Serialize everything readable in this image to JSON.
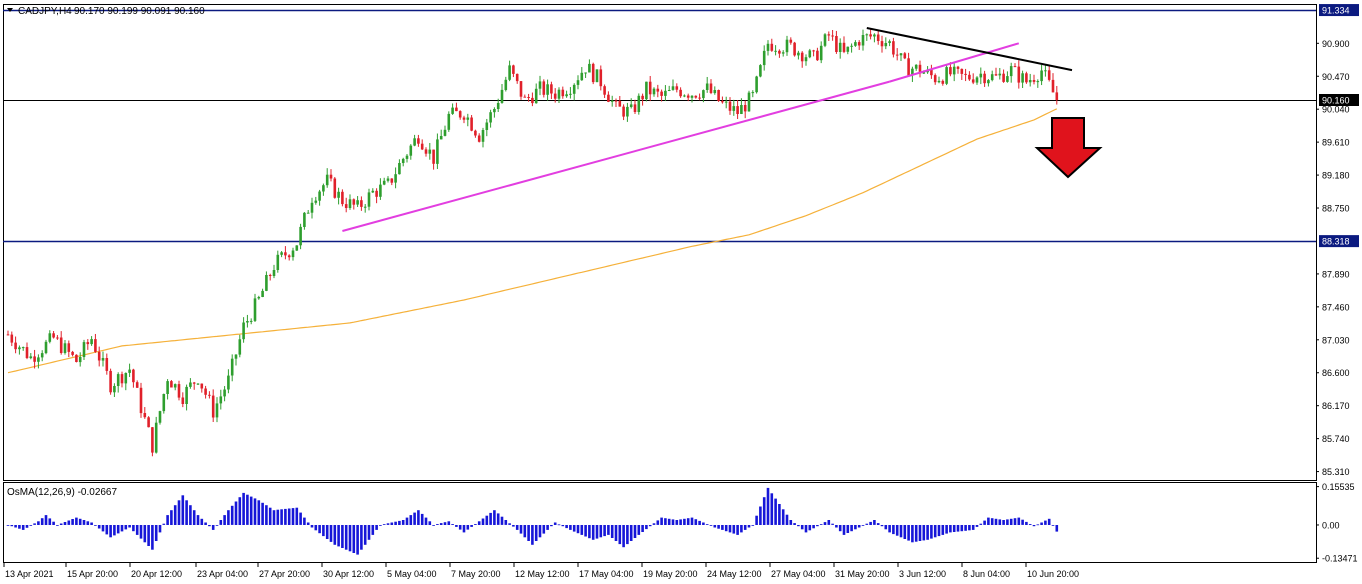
{
  "header": {
    "symbol_label": "CADJPY,H4",
    "ohlc_label": "90.170 90.199 90.091 90.160",
    "menu_icon": "triangle-down-icon"
  },
  "indicator": {
    "label": "OsMA(12,26,9) -0.02667",
    "scale": [
      "0.15535",
      "0.00",
      "-0.13471"
    ]
  },
  "colors": {
    "up": "#2e9e2e",
    "down": "#e0202a",
    "ma": "#f5b13a",
    "support_trend": "#e23ee0",
    "resistance_trend": "#000000",
    "level_line": "#0b1a80",
    "histogram": "#1616d8",
    "arrow": "#e0131c"
  },
  "chart_data": [
    {
      "type": "candlestick",
      "title": "CADJPY,H4",
      "price_axis_labels": [
        "90.900",
        "90.470",
        "90.040",
        "89.610",
        "89.180",
        "88.750",
        "87.890",
        "87.460",
        "87.030",
        "86.600",
        "86.170",
        "85.740",
        "85.310"
      ],
      "time_axis_labels": [
        "13 Apr 2021",
        "15 Apr 20:00",
        "20 Apr 12:00",
        "23 Apr 04:00",
        "27 Apr 20:00",
        "30 Apr 12:00",
        "5 May 04:00",
        "7 May 20:00",
        "12 May 12:00",
        "17 May 04:00",
        "19 May 20:00",
        "24 May 12:00",
        "27 May 04:00",
        "31 May 20:00",
        "3 Jun 12:00",
        "8 Jun 04:00",
        "10 Jun 20:00"
      ],
      "ylim": [
        85.2,
        91.4
      ],
      "levels": [
        {
          "value": 91.334,
          "label": "91.334"
        },
        {
          "value": 88.318,
          "label": "88.318"
        }
      ],
      "current_price": {
        "value": 90.16,
        "label": "90.160"
      },
      "anchors": [
        [
          0,
          87.1
        ],
        [
          6,
          86.8
        ],
        [
          12,
          87.05
        ],
        [
          18,
          86.75
        ],
        [
          22,
          87.05
        ],
        [
          27,
          86.45
        ],
        [
          32,
          86.65
        ],
        [
          38,
          85.65
        ],
        [
          42,
          86.55
        ],
        [
          46,
          86.3
        ],
        [
          50,
          86.55
        ],
        [
          54,
          86.1
        ],
        [
          58,
          86.5
        ],
        [
          62,
          87.2
        ],
        [
          66,
          87.55
        ],
        [
          70,
          88.0
        ],
        [
          76,
          88.3
        ],
        [
          80,
          88.9
        ],
        [
          84,
          89.1
        ],
        [
          88,
          88.85
        ],
        [
          92,
          88.75
        ],
        [
          96,
          88.95
        ],
        [
          100,
          89.05
        ],
        [
          104,
          89.4
        ],
        [
          108,
          89.7
        ],
        [
          112,
          89.4
        ],
        [
          116,
          89.95
        ],
        [
          120,
          90.0
        ],
        [
          124,
          89.7
        ],
        [
          128,
          90.05
        ],
        [
          132,
          90.55
        ],
        [
          136,
          90.15
        ],
        [
          140,
          90.3
        ],
        [
          144,
          90.25
        ],
        [
          148,
          90.35
        ],
        [
          152,
          90.6
        ],
        [
          156,
          90.4
        ],
        [
          160,
          90.05
        ],
        [
          164,
          90.0
        ],
        [
          168,
          90.3
        ],
        [
          172,
          90.2
        ],
        [
          176,
          90.3
        ],
        [
          180,
          90.25
        ],
        [
          184,
          90.3
        ],
        [
          188,
          90.1
        ],
        [
          192,
          90.0
        ],
        [
          196,
          90.2
        ],
        [
          200,
          90.9
        ],
        [
          206,
          90.85
        ],
        [
          212,
          90.7
        ],
        [
          216,
          91.0
        ],
        [
          220,
          90.75
        ],
        [
          224,
          90.95
        ],
        [
          228,
          91.0
        ],
        [
          232,
          90.9
        ],
        [
          236,
          90.6
        ],
        [
          240,
          90.55
        ],
        [
          244,
          90.45
        ],
        [
          248,
          90.5
        ],
        [
          252,
          90.45
        ],
        [
          256,
          90.5
        ],
        [
          260,
          90.45
        ],
        [
          264,
          90.55
        ],
        [
          268,
          90.4
        ],
        [
          272,
          90.55
        ],
        [
          276,
          90.16
        ]
      ],
      "moving_average": [
        [
          0,
          86.6
        ],
        [
          30,
          86.95
        ],
        [
          60,
          87.1
        ],
        [
          90,
          87.25
        ],
        [
          120,
          87.55
        ],
        [
          150,
          87.9
        ],
        [
          180,
          88.25
        ],
        [
          195,
          88.4
        ],
        [
          210,
          88.65
        ],
        [
          225,
          88.95
        ],
        [
          240,
          89.3
        ],
        [
          255,
          89.65
        ],
        [
          270,
          89.9
        ],
        [
          277,
          90.07
        ]
      ],
      "trendlines": [
        {
          "name": "support",
          "points": [
            [
              88,
              88.45
            ],
            [
              232,
              90.4
            ]
          ],
          "extension": [
            [
              232,
              90.4
            ],
            [
              266,
              90.9
            ]
          ]
        },
        {
          "name": "resistance",
          "points": [
            [
              226,
              91.1
            ],
            [
              280,
              90.55
            ]
          ]
        }
      ],
      "signal": "down-arrow"
    },
    {
      "type": "bar",
      "title": "OsMA(12,26,9)",
      "current_value": -0.02667,
      "ylim": [
        -0.15,
        0.17
      ],
      "anchors": [
        [
          0,
          0.0
        ],
        [
          4,
          -0.02
        ],
        [
          8,
          0.015
        ],
        [
          10,
          0.04
        ],
        [
          13,
          0.0
        ],
        [
          18,
          0.03
        ],
        [
          22,
          0.01
        ],
        [
          27,
          -0.05
        ],
        [
          32,
          -0.01
        ],
        [
          38,
          -0.1
        ],
        [
          42,
          0.04
        ],
        [
          46,
          0.12
        ],
        [
          50,
          0.04
        ],
        [
          54,
          -0.02
        ],
        [
          58,
          0.06
        ],
        [
          62,
          0.13
        ],
        [
          66,
          0.1
        ],
        [
          70,
          0.06
        ],
        [
          76,
          0.07
        ],
        [
          80,
          -0.01
        ],
        [
          86,
          -0.08
        ],
        [
          92,
          -0.12
        ],
        [
          98,
          0.0
        ],
        [
          104,
          0.02
        ],
        [
          108,
          0.06
        ],
        [
          112,
          0.0
        ],
        [
          116,
          0.015
        ],
        [
          120,
          -0.03
        ],
        [
          128,
          0.06
        ],
        [
          134,
          -0.02
        ],
        [
          138,
          -0.08
        ],
        [
          144,
          0.01
        ],
        [
          148,
          -0.02
        ],
        [
          154,
          -0.06
        ],
        [
          158,
          -0.04
        ],
        [
          162,
          -0.09
        ],
        [
          166,
          -0.04
        ],
        [
          172,
          0.03
        ],
        [
          176,
          0.02
        ],
        [
          180,
          0.03
        ],
        [
          186,
          -0.01
        ],
        [
          192,
          -0.04
        ],
        [
          196,
          0.0
        ],
        [
          200,
          0.15
        ],
        [
          206,
          0.02
        ],
        [
          210,
          -0.03
        ],
        [
          216,
          0.02
        ],
        [
          220,
          -0.04
        ],
        [
          224,
          -0.01
        ],
        [
          228,
          0.02
        ],
        [
          232,
          -0.03
        ],
        [
          238,
          -0.07
        ],
        [
          242,
          -0.06
        ],
        [
          248,
          -0.03
        ],
        [
          254,
          -0.02
        ],
        [
          258,
          0.03
        ],
        [
          262,
          0.02
        ],
        [
          266,
          0.03
        ],
        [
          270,
          -0.005
        ],
        [
          274,
          0.025
        ],
        [
          276,
          -0.027
        ]
      ]
    }
  ]
}
